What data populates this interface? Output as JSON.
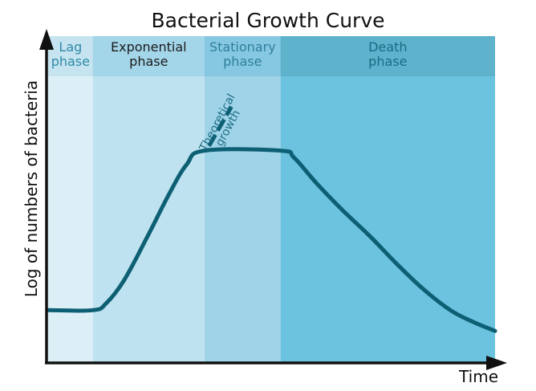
{
  "chart_data": {
    "type": "line",
    "title": "Bacterial Growth Curve",
    "xlabel": "Time",
    "ylabel": "Log of numbers of bacteria",
    "grid": false,
    "phases": [
      {
        "label_lines": [
          "Lag",
          "phase"
        ],
        "start": 0,
        "end": 10,
        "color": "#dceff6",
        "header_color": "#c5e4f0",
        "label_color": "#2f8aa8"
      },
      {
        "label_lines": [
          "Exponential",
          "phase"
        ],
        "start": 10,
        "end": 35,
        "color": "#bfe2f0",
        "header_color": "#a4d6ea",
        "label_color": "#1a1a1a"
      },
      {
        "label_lines": [
          "Stationary",
          "phase"
        ],
        "start": 35,
        "end": 52,
        "color": "#9fd3e8",
        "header_color": "#86c8e2",
        "label_color": "#2f7f9c"
      },
      {
        "label_lines": [
          "Death",
          "phase"
        ],
        "start": 52,
        "end": 100,
        "color": "#6cc3df",
        "header_color": "#5eb2cc",
        "label_color": "#1c6a84"
      }
    ],
    "xlim": [
      0,
      100
    ],
    "ylim": [
      0,
      100
    ],
    "series": [
      {
        "color": "#0d5f74",
        "x": [
          0,
          10,
          13,
          17,
          22,
          27,
          31,
          35,
          52,
          55,
          60,
          66,
          72,
          78,
          84,
          90,
          95,
          100
        ],
        "y": [
          11,
          11,
          14,
          24,
          42,
          61,
          74,
          80,
          80,
          77,
          66,
          54,
          43,
          31,
          20,
          11,
          6,
          2
        ]
      },
      {
        "color": "#0d5f74",
        "dashed": true,
        "x": [
          36,
          41
        ],
        "y": [
          82,
          99
        ]
      }
    ],
    "annotation": {
      "lines": [
        "Theoretical",
        "growth"
      ],
      "x": 39.5,
      "y": 90.5,
      "angle_deg": -62
    }
  }
}
